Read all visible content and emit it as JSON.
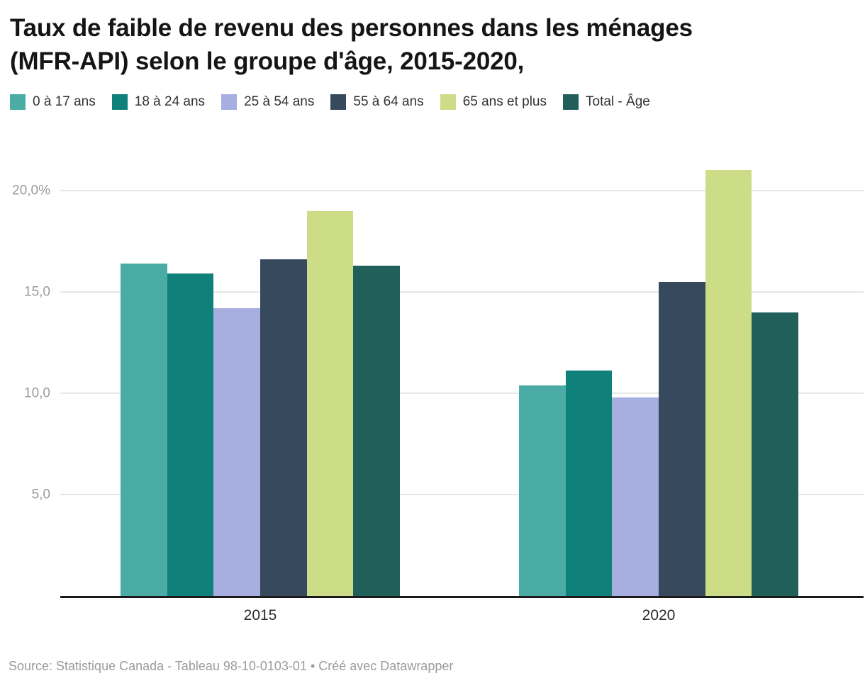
{
  "title_lines": [
    "Taux de faible de revenu des personnes dans les ménages",
    "(MFR-API) selon le groupe d'âge, 2015-2020,"
  ],
  "footer": {
    "source": "Source: Statistique Canada - Tableau 98-10-0103-01 • Créé avec Datawrapper"
  },
  "chart_data": {
    "type": "bar",
    "title": "Taux de faible de revenu des personnes dans les ménages (MFR-API) selon le groupe d'âge, 2015-2020,",
    "categories": [
      "2015",
      "2020"
    ],
    "series": [
      {
        "name": "0 à 17 ans",
        "color": "#4aaca4",
        "values": [
          16.4,
          10.4
        ]
      },
      {
        "name": "18 à 24 ans",
        "color": "#0f817a",
        "values": [
          15.9,
          11.1
        ]
      },
      {
        "name": "25 à 54 ans",
        "color": "#a6afdf",
        "values": [
          14.2,
          9.8
        ]
      },
      {
        "name": "55 à 64 ans",
        "color": "#36495d",
        "values": [
          16.6,
          15.5
        ]
      },
      {
        "name": "65 ans et plus",
        "color": "#cddc86",
        "values": [
          19.0,
          21.0
        ]
      },
      {
        "name": "Total - Âge",
        "color": "#215f5a",
        "values": [
          16.3,
          14.0
        ]
      }
    ],
    "yticks": [
      {
        "value": 5,
        "label": "5,0"
      },
      {
        "value": 10,
        "label": "10,0"
      },
      {
        "value": 15,
        "label": "15,0"
      },
      {
        "value": 20,
        "label": "20,0%"
      }
    ],
    "ylim": [
      0,
      21.5
    ],
    "xlabel": "",
    "ylabel": "",
    "grid": true,
    "legend_position": "top"
  }
}
